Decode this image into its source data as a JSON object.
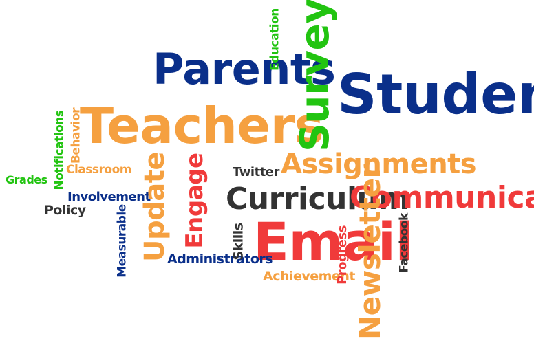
{
  "colors": {
    "blue": "#0a2f8a",
    "orange": "#f5a040",
    "green": "#22c411",
    "red": "#f03a3a",
    "dark": "#333333"
  },
  "words": {
    "students": "Students",
    "parents": "Parents",
    "survey": "Survey",
    "education": "Education",
    "teachers": "Teachers",
    "behavior": "Behavior",
    "notifications": "Notifications",
    "grades": "Grades",
    "classroom": "Classroom",
    "involvement": "Involvement",
    "policy": "Policy",
    "measurable": "Measurable",
    "update": "Update",
    "engage": "Engage",
    "twitter": "Twitter",
    "assignments": "Assignments",
    "curriculum": "Curriculum",
    "communicate": "Communicate",
    "skills": "Skills",
    "email": "Email",
    "administrators": "Administrators",
    "achievement": "Achievement",
    "progress": "Progress",
    "newsletter": "Newsletter",
    "facebook": "Facebook"
  }
}
